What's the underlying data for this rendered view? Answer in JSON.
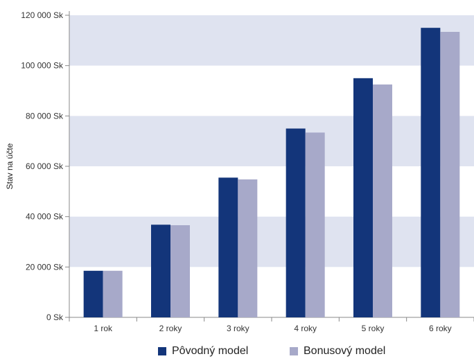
{
  "chart_data": {
    "type": "bar",
    "title": "",
    "xlabel": "",
    "ylabel": "Stav na účte",
    "categories": [
      "1 rok",
      "2 roky",
      "3 roky",
      "4 roky",
      "5 roky",
      "6 roky"
    ],
    "series": [
      {
        "name": "Pôvodný model",
        "color": "#13357a",
        "values": [
          18500,
          36800,
          55500,
          75000,
          95000,
          115000
        ]
      },
      {
        "name": "Bonusový model",
        "color": "#a7a9c9",
        "values": [
          18500,
          36600,
          54800,
          73400,
          92500,
          113400
        ]
      }
    ],
    "ylim": [
      0,
      120000
    ],
    "yticks": [
      0,
      20000,
      40000,
      60000,
      80000,
      100000,
      120000
    ],
    "ytick_labels": [
      "0 Sk",
      "20 000 Sk",
      "40 000 Sk",
      "60 000 Sk",
      "80 000 Sk",
      "100 000 Sk",
      "120 000 Sk"
    ],
    "grid": "alternating horizontal bands",
    "band_color": "#dfe3f0",
    "legend_position": "bottom"
  }
}
